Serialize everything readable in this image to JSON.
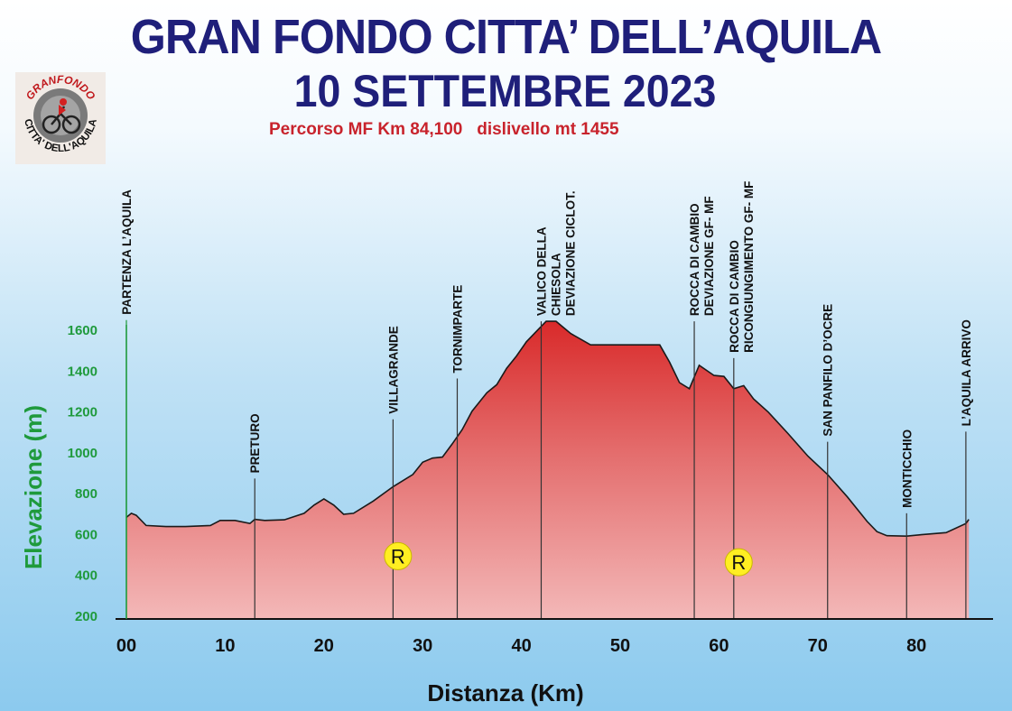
{
  "header": {
    "title_line1": "GRAN FONDO CITTA’ DELL’AQUILA",
    "title_line2": "10 SETTEMBRE 2023",
    "subtitle": "Percorso MF Km 84,100   dislivello mt 1455"
  },
  "logo": {
    "text_top": "GRANFONDO",
    "text_bottom": "CITTA' DELL'AQUILA"
  },
  "colors": {
    "title": "#1f1f7a",
    "subtitle": "#c8232c",
    "ylabel": "#1f9a3c",
    "fill_top": "#d92a2a",
    "fill_bottom": "#f3b8b8"
  },
  "chart_data": {
    "type": "area",
    "title": "GRAN FONDO CITTA’ DELL’AQUILA",
    "xlabel": "Distanza (Km)",
    "ylabel": "Elevazione (m)",
    "xlim": [
      0,
      87
    ],
    "ylim": [
      200,
      1640
    ],
    "x_ticks": [
      "00",
      "10",
      "20",
      "30",
      "40",
      "50",
      "60",
      "70",
      "80"
    ],
    "x_tick_values": [
      0,
      10,
      20,
      30,
      40,
      50,
      60,
      70,
      80
    ],
    "y_ticks": [
      200,
      400,
      600,
      800,
      1000,
      1200,
      1400,
      1600
    ],
    "profile": [
      [
        0,
        680
      ],
      [
        0.5,
        700
      ],
      [
        1,
        690
      ],
      [
        2,
        640
      ],
      [
        4,
        635
      ],
      [
        6,
        635
      ],
      [
        8.5,
        640
      ],
      [
        9.5,
        665
      ],
      [
        11,
        665
      ],
      [
        12.5,
        650
      ],
      [
        13,
        670
      ],
      [
        14,
        665
      ],
      [
        16,
        668
      ],
      [
        18,
        700
      ],
      [
        19,
        740
      ],
      [
        20,
        770
      ],
      [
        21,
        740
      ],
      [
        22,
        695
      ],
      [
        23,
        700
      ],
      [
        25,
        760
      ],
      [
        27,
        830
      ],
      [
        29,
        890
      ],
      [
        30,
        950
      ],
      [
        31,
        970
      ],
      [
        32,
        975
      ],
      [
        33,
        1040
      ],
      [
        34,
        1110
      ],
      [
        35,
        1200
      ],
      [
        36.5,
        1290
      ],
      [
        37.5,
        1330
      ],
      [
        38.5,
        1410
      ],
      [
        39.5,
        1470
      ],
      [
        40.5,
        1540
      ],
      [
        41.5,
        1590
      ],
      [
        42.5,
        1640
      ],
      [
        43.5,
        1640
      ],
      [
        45,
        1580
      ],
      [
        47,
        1525
      ],
      [
        50,
        1525
      ],
      [
        54,
        1525
      ],
      [
        55,
        1440
      ],
      [
        56,
        1340
      ],
      [
        57,
        1310
      ],
      [
        58,
        1425
      ],
      [
        59.5,
        1375
      ],
      [
        60.5,
        1370
      ],
      [
        61.5,
        1310
      ],
      [
        62.5,
        1325
      ],
      [
        63.5,
        1260
      ],
      [
        65,
        1195
      ],
      [
        67,
        1090
      ],
      [
        69,
        980
      ],
      [
        71,
        890
      ],
      [
        73,
        780
      ],
      [
        75,
        660
      ],
      [
        76,
        610
      ],
      [
        77,
        590
      ],
      [
        79,
        588
      ],
      [
        80.5,
        595
      ],
      [
        83,
        605
      ],
      [
        85,
        650
      ],
      [
        85.3,
        670
      ]
    ],
    "waypoints": [
      {
        "km": 0,
        "label": "PARTENZA L’AQUILA",
        "line_top": 1646
      },
      {
        "km": 13,
        "label": "PRETURO",
        "line_top": 870
      },
      {
        "km": 27,
        "label": "VILLAGRANDE",
        "line_top": 1160
      },
      {
        "km": 33.5,
        "label": "TORNIMPARTE",
        "line_top": 1360
      },
      {
        "km": 42,
        "label": "VALICO DELLA CHIESOLA DEVIAZIONE CICLOT.",
        "line_top": 1640
      },
      {
        "km": 57.5,
        "label": "ROCCA DI CAMBIO DEVIAZIONE GF- MF",
        "line_top": 1640
      },
      {
        "km": 61.5,
        "label": "ROCCA DI CAMBIO RICONGIUNGIMENTO  GF- MF",
        "line_top": 1460
      },
      {
        "km": 71,
        "label": "SAN PANFILO D’OCRE",
        "line_top": 1050
      },
      {
        "km": 79,
        "label": "MONTICCHIO",
        "line_top": 700
      },
      {
        "km": 85,
        "label": "L’AQUILA ARRIVO",
        "line_top": 1100
      }
    ],
    "refreshment_points": [
      {
        "km": 27.5,
        "label": "R",
        "y": 490
      },
      {
        "km": 62,
        "label": "R",
        "y": 460
      }
    ],
    "grid": false
  }
}
